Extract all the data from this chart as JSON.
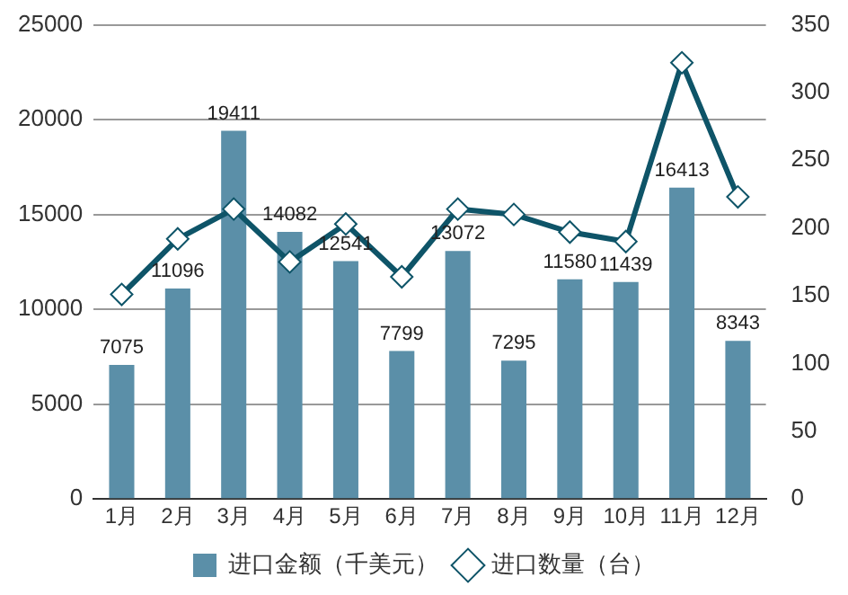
{
  "chart_data": {
    "type": "bar",
    "categories": [
      "1月",
      "2月",
      "3月",
      "4月",
      "5月",
      "6月",
      "7月",
      "8月",
      "9月",
      "10月",
      "11月",
      "12月"
    ],
    "series": [
      {
        "name": "进口金额（千美元）",
        "color": "#5b8fa8",
        "values": [
          7075,
          11096,
          19411,
          14082,
          12541,
          7799,
          13072,
          7295,
          11580,
          11439,
          16413,
          8343
        ],
        "value_labels": [
          "7075",
          "11096",
          "19411",
          "14082",
          "12541",
          "7799",
          "13072",
          "7295",
          "11580",
          "11439",
          "16413",
          "8343"
        ]
      },
      {
        "name": "进口数量（台）",
        "type": "line",
        "axis": "y2",
        "color": "#0e5468",
        "marker": "diamond",
        "values": [
          151,
          192,
          214,
          175,
          203,
          164,
          214,
          210,
          197,
          190,
          322,
          223
        ]
      }
    ],
    "ylim": [
      0,
      25000
    ],
    "yticks": [
      0,
      5000,
      10000,
      15000,
      20000,
      25000
    ],
    "y2lim": [
      0,
      350
    ],
    "y2ticks": [
      0,
      50,
      100,
      150,
      200,
      250,
      300,
      350
    ],
    "grid": "y",
    "legend": "bottom"
  }
}
